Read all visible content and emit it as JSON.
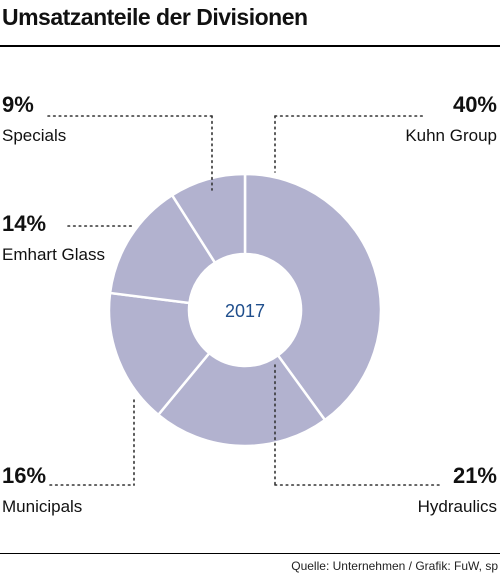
{
  "title": "Umsatzanteile der Divisionen",
  "source": "Quelle: Unternehmen / Grafik: FuW, sp",
  "colors": {
    "slice": "#b2b2cf",
    "separator": "#ffffff",
    "center_text": "#1f4e8c",
    "leader": "#333333"
  },
  "chart_data": {
    "type": "pie",
    "variant": "donut",
    "center_label": "2017",
    "slices": [
      {
        "label": "Kuhn Group",
        "value": 40,
        "value_label": "40%"
      },
      {
        "label": "Hydraulics",
        "value": 21,
        "value_label": "21%"
      },
      {
        "label": "Municipals",
        "value": 16,
        "value_label": "16%"
      },
      {
        "label": "Emhart Glass",
        "value": 14,
        "value_label": "14%"
      },
      {
        "label": "Specials",
        "value": 9,
        "value_label": "9%"
      }
    ]
  }
}
